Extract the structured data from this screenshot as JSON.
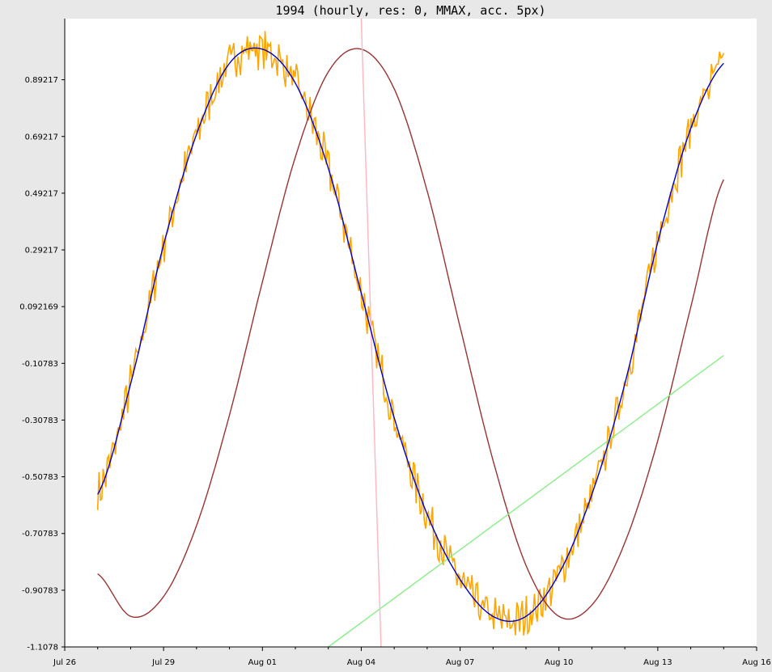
{
  "chart_data": {
    "type": "line",
    "title": "1994 (hourly, res: 0, MMAX, acc. 5px)",
    "xlabel": "",
    "ylabel": "",
    "x_axis": {
      "start": "Jul 26",
      "end": "Aug 16",
      "range_days": [
        0,
        21
      ],
      "tick_labels": [
        "Jul 26",
        "Jul 29",
        "Aug 01",
        "Aug 04",
        "Aug 07",
        "Aug 10",
        "Aug 13",
        "Aug 16"
      ],
      "tick_days": [
        0,
        3,
        6,
        9,
        12,
        15,
        18,
        21
      ]
    },
    "y_axis": {
      "ylim": [
        -1.1078,
        1.1078
      ],
      "tick_labels": [
        "0.89217",
        "0.69217",
        "0.49217",
        "0.29217",
        "0.092169",
        "-0.10783",
        "-0.30783",
        "-0.50783",
        "-0.70783",
        "-0.90783",
        "-1.1078"
      ],
      "tick_values": [
        0.89217,
        0.69217,
        0.49217,
        0.29217,
        0.092169,
        -0.10783,
        -0.30783,
        -0.50783,
        -0.70783,
        -0.90783,
        -1.1078
      ]
    },
    "grid": false,
    "legend": "none",
    "series": [
      {
        "color": "#ffa500",
        "style": "noisy",
        "x_days": [
          1.0,
          2.0,
          3.0,
          4.0,
          5.0,
          6.0,
          7.0,
          8.0,
          9.0,
          10.0,
          11.0,
          12.0,
          13.0,
          14.0,
          15.0,
          16.0,
          17.0,
          18.0,
          19.0,
          20.0
        ],
        "y": [
          -0.57,
          -0.18,
          0.31,
          0.7,
          0.95,
          1.0,
          0.88,
          0.58,
          0.14,
          -0.3,
          -0.64,
          -0.87,
          -1.0,
          -1.0,
          -0.85,
          -0.57,
          -0.18,
          0.32,
          0.72,
          0.95
        ]
      },
      {
        "color": "#0000cc",
        "style": "smooth",
        "x_days": [
          1.0,
          2.0,
          3.0,
          4.0,
          5.0,
          6.0,
          7.0,
          8.0,
          9.0,
          10.0,
          11.0,
          12.0,
          13.0,
          14.0,
          15.0,
          16.0,
          17.0,
          18.0,
          19.0,
          20.0
        ],
        "y": [
          -0.57,
          -0.18,
          0.31,
          0.7,
          0.95,
          1.0,
          0.88,
          0.58,
          0.14,
          -0.3,
          -0.64,
          -0.87,
          -1.0,
          -1.0,
          -0.85,
          -0.57,
          -0.18,
          0.32,
          0.72,
          0.95
        ]
      },
      {
        "color": "#993333",
        "style": "smooth",
        "x_days": [
          1.0,
          2.0,
          3.0,
          4.0,
          5.0,
          6.0,
          7.0,
          8.0,
          9.0,
          10.0,
          11.0,
          12.0,
          13.0,
          14.0,
          15.0,
          16.0,
          17.0,
          18.0,
          19.0,
          20.0
        ],
        "y": [
          -0.85,
          -1.0,
          -0.93,
          -0.68,
          -0.29,
          0.18,
          0.62,
          0.92,
          1.0,
          0.86,
          0.5,
          0.02,
          -0.45,
          -0.82,
          -1.0,
          -0.96,
          -0.74,
          -0.38,
          0.09,
          0.54
        ]
      },
      {
        "color": "#88ee88",
        "style": "line",
        "x_days": [
          8.0,
          20.0
        ],
        "y": [
          -1.1078,
          -0.08
        ]
      },
      {
        "color": "#ffb6c1",
        "style": "line",
        "x_days": [
          9.0,
          9.6
        ],
        "y": [
          1.1078,
          -1.1078
        ]
      }
    ]
  }
}
